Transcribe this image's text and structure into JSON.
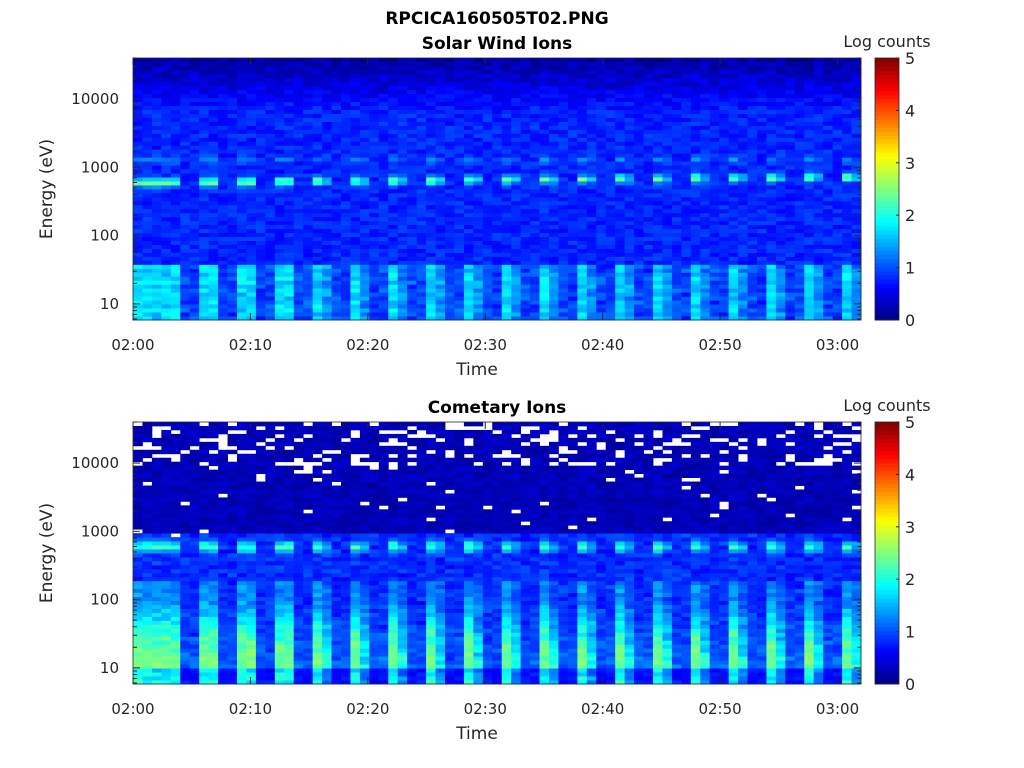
{
  "figure_title": "RPCICA160505T02.PNG",
  "colors": {
    "missing": "#ffffff",
    "colormap": "jet",
    "axis": "#262626"
  },
  "chart_data": [
    {
      "type": "heatmap",
      "title": "Solar Wind Ions",
      "xlabel": "Time",
      "ylabel": "Energy (eV)",
      "x_ticks": [
        "02:00",
        "02:10",
        "02:20",
        "02:30",
        "02:40",
        "02:50",
        "03:00"
      ],
      "x_range": [
        "02:00",
        "03:02"
      ],
      "y_scale": "log",
      "y_ticks": [
        "10",
        "100",
        "1000",
        "10000"
      ],
      "y_range": [
        5.8,
        40000
      ],
      "colorbar": {
        "label": "Log counts",
        "range": [
          0,
          5
        ],
        "ticks": [
          "0",
          "1",
          "2",
          "3",
          "4",
          "5"
        ]
      },
      "features": {
        "background_log_counts": 0.8,
        "peak_energy_eV_start": 600,
        "peak_energy_eV_end": 720,
        "peak_log_counts": 2.4,
        "secondary_peak_energy_eV": 1300,
        "secondary_peak_log_counts": 1.4,
        "low_energy_log_counts": 1.6,
        "pulse_period_min": 3.2
      }
    },
    {
      "type": "heatmap",
      "title": "Cometary Ions",
      "xlabel": "Time",
      "ylabel": "Energy (eV)",
      "x_ticks": [
        "02:00",
        "02:10",
        "02:20",
        "02:30",
        "02:40",
        "02:50",
        "03:00"
      ],
      "x_range": [
        "02:00",
        "03:02"
      ],
      "y_scale": "log",
      "y_ticks": [
        "10",
        "100",
        "1000",
        "10000"
      ],
      "y_range": [
        5.8,
        40000
      ],
      "colorbar": {
        "label": "Log counts",
        "range": [
          0,
          5
        ],
        "ticks": [
          "0",
          "1",
          "2",
          "3",
          "4",
          "5"
        ]
      },
      "features": {
        "background_log_counts": 0.15,
        "pulse_energy_eV": 600,
        "pulse_log_counts": 1.3,
        "low_energy_peak_eV": 15,
        "low_energy_peak_log_counts": 2.3,
        "pulse_period_min": 3.2,
        "missing_data_above_eV": 10000
      }
    }
  ]
}
